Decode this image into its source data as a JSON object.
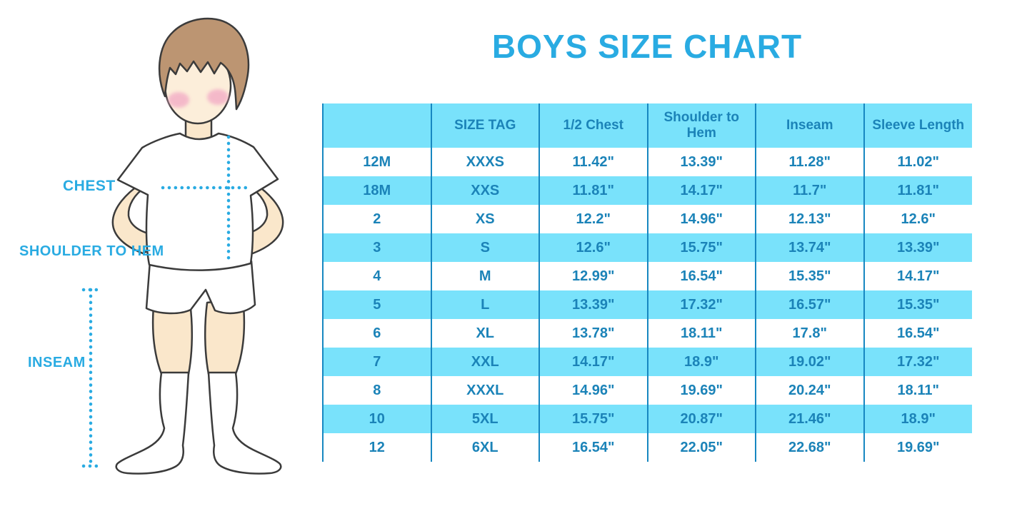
{
  "title": "BOYS SIZE CHART",
  "colors": {
    "accent": "#29ABE2",
    "stripe": "#79E2FB",
    "table_text": "#1B83B8",
    "grid_line": "#1787C1",
    "hair": "#BC9572",
    "skin": "#FAE7CB",
    "face": "#FCEEDA",
    "cheek": "#F3ADC6",
    "outline": "#3B3B3B"
  },
  "figure": {
    "labels": {
      "chest": "CHEST",
      "shoulder_to_hem": "SHOULDER TO HEM",
      "inseam": "INSEAM"
    }
  },
  "chart_data": {
    "type": "table",
    "title": "BOYS SIZE CHART",
    "columns": [
      "",
      "SIZE TAG",
      "1/2 Chest",
      "Shoulder to Hem",
      "Inseam",
      "Sleeve Length"
    ],
    "rows": [
      [
        "12M",
        "XXXS",
        "11.42\"",
        "13.39\"",
        "11.28\"",
        "11.02\""
      ],
      [
        "18M",
        "XXS",
        "11.81\"",
        "14.17\"",
        "11.7\"",
        "11.81\""
      ],
      [
        "2",
        "XS",
        "12.2\"",
        "14.96\"",
        "12.13\"",
        "12.6\""
      ],
      [
        "3",
        "S",
        "12.6\"",
        "15.75\"",
        "13.74\"",
        "13.39\""
      ],
      [
        "4",
        "M",
        "12.99\"",
        "16.54\"",
        "15.35\"",
        "14.17\""
      ],
      [
        "5",
        "L",
        "13.39\"",
        "17.32\"",
        "16.57\"",
        "15.35\""
      ],
      [
        "6",
        "XL",
        "13.78\"",
        "18.11\"",
        "17.8\"",
        "16.54\""
      ],
      [
        "7",
        "XXL",
        "14.17\"",
        "18.9\"",
        "19.02\"",
        "17.32\""
      ],
      [
        "8",
        "XXXL",
        "14.96\"",
        "19.69\"",
        "20.24\"",
        "18.11\""
      ],
      [
        "10",
        "5XL",
        "15.75\"",
        "20.87\"",
        "21.46\"",
        "18.9\""
      ],
      [
        "12",
        "6XL",
        "16.54\"",
        "22.05\"",
        "22.68\"",
        "19.69\""
      ]
    ],
    "striped_row_indices": [
      1,
      3,
      5,
      7,
      9
    ],
    "grid": "vertical-only",
    "legend_position": "none"
  }
}
